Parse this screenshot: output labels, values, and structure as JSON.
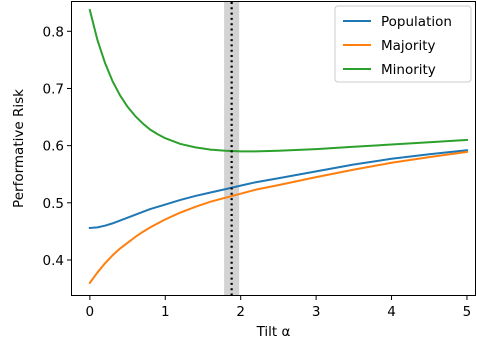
{
  "chart_data": {
    "type": "line",
    "xlabel": "Tilt α",
    "ylabel": "Performative Risk",
    "xlim": [
      -0.25,
      5.12
    ],
    "ylim": [
      0.337,
      0.853
    ],
    "xticks": [
      0,
      1,
      2,
      3,
      4,
      5
    ],
    "yticks": [
      0.4,
      0.5,
      0.6,
      0.7,
      0.8
    ],
    "xtick_labels": [
      "0",
      "1",
      "2",
      "3",
      "4",
      "5"
    ],
    "ytick_labels": [
      "0.4",
      "0.5",
      "0.6",
      "0.7",
      "0.8"
    ],
    "grid": false,
    "legend_position": "top-right",
    "vline": {
      "x": 1.88,
      "band": [
        1.78,
        1.98
      ],
      "style": "dotted",
      "color": "#000000",
      "band_color": "#d3d3d3"
    },
    "x": [
      0,
      0.1,
      0.2,
      0.3,
      0.4,
      0.5,
      0.6,
      0.7,
      0.8,
      0.9,
      1.0,
      1.2,
      1.4,
      1.6,
      1.8,
      2.0,
      2.2,
      2.5,
      3.0,
      3.5,
      4.0,
      4.5,
      5.0
    ],
    "series": [
      {
        "name": "Population",
        "color": "#1f77b4",
        "values": [
          0.456,
          0.457,
          0.46,
          0.464,
          0.469,
          0.474,
          0.479,
          0.484,
          0.489,
          0.493,
          0.497,
          0.505,
          0.512,
          0.518,
          0.524,
          0.53,
          0.536,
          0.543,
          0.555,
          0.567,
          0.577,
          0.585,
          0.592
        ]
      },
      {
        "name": "Majority",
        "color": "#ff7f0e",
        "values": [
          0.36,
          0.378,
          0.394,
          0.408,
          0.42,
          0.43,
          0.44,
          0.449,
          0.457,
          0.464,
          0.471,
          0.483,
          0.493,
          0.502,
          0.509,
          0.516,
          0.523,
          0.531,
          0.545,
          0.558,
          0.57,
          0.58,
          0.589
        ]
      },
      {
        "name": "Minority",
        "color": "#2ca02c",
        "values": [
          0.837,
          0.785,
          0.745,
          0.713,
          0.688,
          0.668,
          0.652,
          0.639,
          0.628,
          0.62,
          0.613,
          0.603,
          0.597,
          0.593,
          0.591,
          0.59,
          0.59,
          0.591,
          0.594,
          0.598,
          0.602,
          0.606,
          0.61
        ]
      }
    ]
  }
}
